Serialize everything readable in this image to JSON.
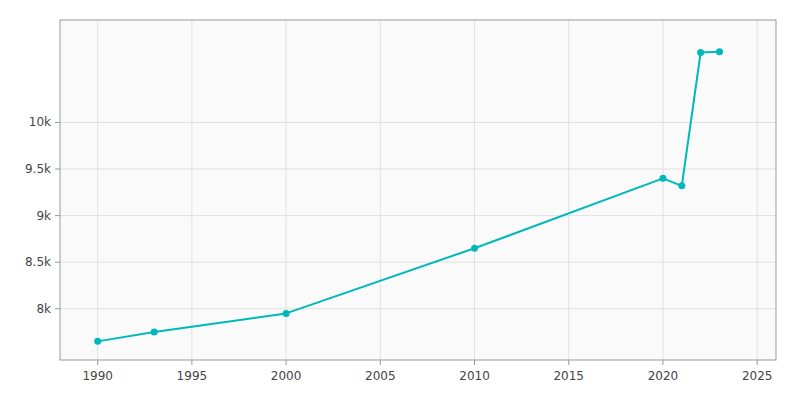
{
  "chart_data": {
    "type": "line",
    "x": [
      1990,
      1993,
      2000,
      2010,
      2020,
      2021,
      2022,
      2023
    ],
    "values": [
      7650,
      7750,
      7950,
      8650,
      9400,
      9320,
      10750,
      10760
    ],
    "color": "#00b8ba",
    "marker": "circle",
    "xlim": [
      1988,
      2026
    ],
    "ylim": [
      7450,
      11100
    ],
    "xticks": [
      1990,
      1995,
      2000,
      2005,
      2010,
      2015,
      2020,
      2025
    ],
    "yticks": [
      {
        "value": 8000,
        "label": "8k"
      },
      {
        "value": 8500,
        "label": "8.5k"
      },
      {
        "value": 9000,
        "label": "9k"
      },
      {
        "value": 9500,
        "label": "9.5k"
      },
      {
        "value": 10000,
        "label": "10k"
      }
    ],
    "grid": true
  }
}
